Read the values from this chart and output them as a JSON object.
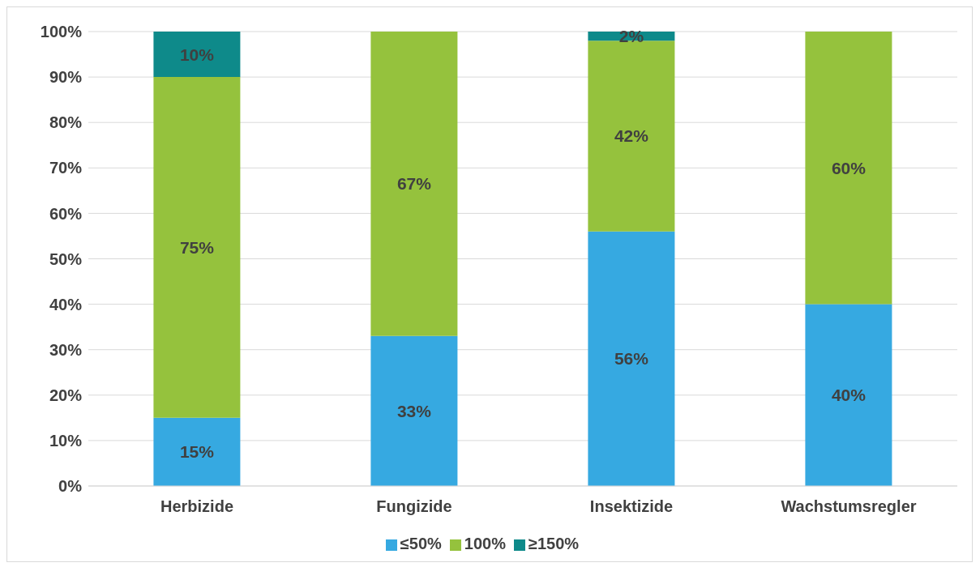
{
  "chart_data": {
    "type": "bar",
    "stacked": true,
    "categories": [
      "Herbizide",
      "Fungizide",
      "Insektizide",
      "Wachstumsregler"
    ],
    "series": [
      {
        "name": "≤50%",
        "color": "#36a9e1",
        "values": [
          15,
          33,
          56,
          40
        ],
        "value_labels": [
          "15%",
          "33%",
          "56%",
          "40%"
        ]
      },
      {
        "name": "100%",
        "color": "#95c23d",
        "values": [
          75,
          67,
          42,
          60
        ],
        "value_labels": [
          "75%",
          "67%",
          "42%",
          "60%"
        ]
      },
      {
        "name": "≥150%",
        "color": "#0e8a8a",
        "values": [
          10,
          null,
          2,
          null
        ],
        "value_labels": [
          "10%",
          null,
          "2%",
          null
        ]
      }
    ],
    "ylim": [
      0,
      100
    ],
    "yticks": [
      {
        "value": 0,
        "label": "0%"
      },
      {
        "value": 10,
        "label": "10%"
      },
      {
        "value": 20,
        "label": "20%"
      },
      {
        "value": 30,
        "label": "30%"
      },
      {
        "value": 40,
        "label": "40%"
      },
      {
        "value": 50,
        "label": "50%"
      },
      {
        "value": 60,
        "label": "60%"
      },
      {
        "value": 70,
        "label": "70%"
      },
      {
        "value": 80,
        "label": "80%"
      },
      {
        "value": 90,
        "label": "90%"
      },
      {
        "value": 100,
        "label": "100%"
      }
    ],
    "grid": "y",
    "legend": "bottom"
  }
}
